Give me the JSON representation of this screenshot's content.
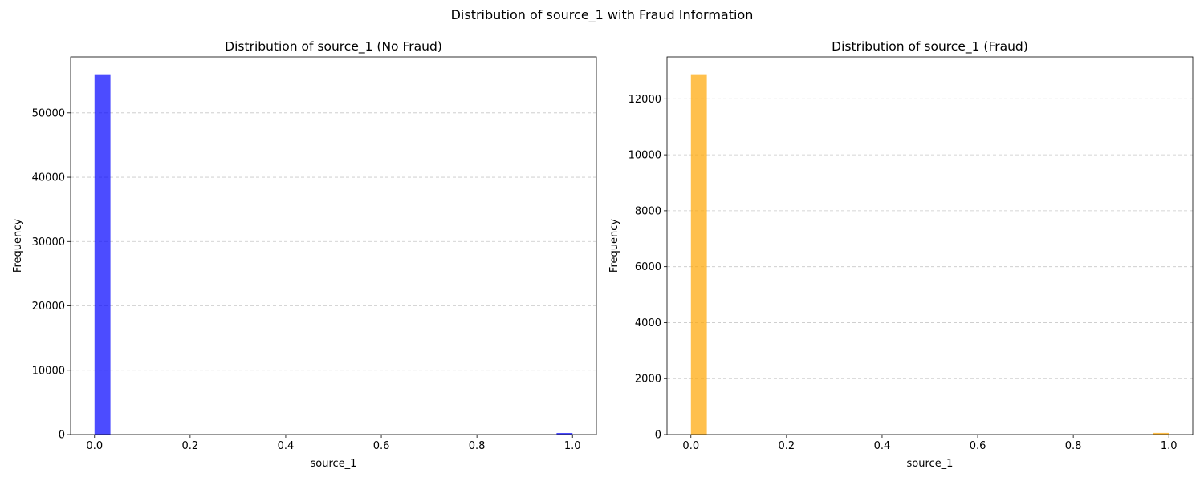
{
  "figure": {
    "title": "Distribution of source_1 with Fraud Information"
  },
  "chart_data": [
    {
      "type": "bar",
      "title": "Distribution of source_1 (No Fraud)",
      "xlabel": "source_1",
      "ylabel": "Frequency",
      "xlim": [
        -0.05,
        1.05
      ],
      "ylim": [
        0,
        58700
      ],
      "x_ticks": [
        0.0,
        0.2,
        0.4,
        0.6,
        0.8,
        1.0
      ],
      "x_tick_labels": [
        "0.0",
        "0.2",
        "0.4",
        "0.6",
        "0.8",
        "1.0"
      ],
      "y_ticks": [
        0,
        10000,
        20000,
        30000,
        40000,
        50000
      ],
      "y_tick_labels": [
        "0",
        "10000",
        "20000",
        "30000",
        "40000",
        "50000"
      ],
      "bins": 30,
      "bars": [
        {
          "x_start": 0.0,
          "x_end": 0.0333,
          "value": 56000
        },
        {
          "x_start": 0.9667,
          "x_end": 1.0,
          "value": 250
        }
      ],
      "color": "#0000ff",
      "opacity": 0.7,
      "grid": "y-dashed"
    },
    {
      "type": "bar",
      "title": "Distribution of source_1 (Fraud)",
      "xlabel": "source_1",
      "ylabel": "Frequency",
      "xlim": [
        -0.05,
        1.05
      ],
      "ylim": [
        0,
        13500
      ],
      "x_ticks": [
        0.0,
        0.2,
        0.4,
        0.6,
        0.8,
        1.0
      ],
      "x_tick_labels": [
        "0.0",
        "0.2",
        "0.4",
        "0.6",
        "0.8",
        "1.0"
      ],
      "y_ticks": [
        0,
        2000,
        4000,
        6000,
        8000,
        10000,
        12000
      ],
      "y_tick_labels": [
        "0",
        "2000",
        "4000",
        "6000",
        "8000",
        "10000",
        "12000"
      ],
      "bins": 30,
      "bars": [
        {
          "x_start": 0.0,
          "x_end": 0.0333,
          "value": 12880
        },
        {
          "x_start": 0.9667,
          "x_end": 1.0,
          "value": 60
        }
      ],
      "color": "#ffa500",
      "opacity": 0.7,
      "grid": "y-dashed"
    }
  ]
}
